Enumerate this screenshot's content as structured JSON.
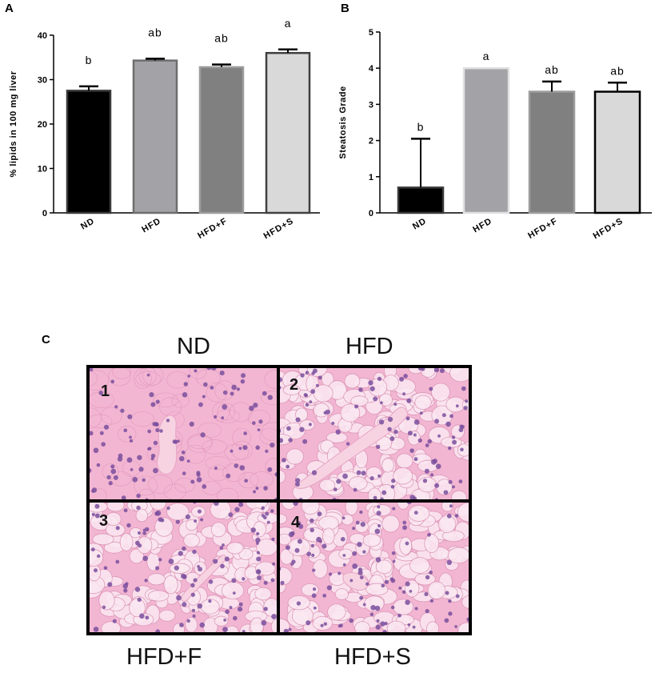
{
  "panels": {
    "a_label": "A",
    "b_label": "B",
    "c_label": "C"
  },
  "chart_data": [
    {
      "type": "bar",
      "panel": "A",
      "categories": [
        "ND",
        "HFD",
        "HFD+F",
        "HFD+S"
      ],
      "values": [
        27.5,
        34.3,
        32.8,
        36.0
      ],
      "errors": [
        1.0,
        0.4,
        0.6,
        0.8
      ],
      "letters": [
        "b",
        "ab",
        "ab",
        "a"
      ],
      "colors": [
        "#000000",
        "#a3a3a7",
        "#808080",
        "#d9d9d9"
      ],
      "edge_colors": [
        "#3a3a3a",
        "#6e6e6e",
        "#9c9c9c",
        "#404040"
      ],
      "title": "",
      "xlabel": "",
      "ylabel": "% lipids in 100 mg liver",
      "ylim": [
        0,
        40
      ],
      "yticks": [
        "0",
        "10",
        "20",
        "30",
        "40"
      ]
    },
    {
      "type": "bar",
      "panel": "B",
      "categories": [
        "ND",
        "HFD",
        "HFD+F",
        "HFD+S"
      ],
      "values": [
        0.7,
        4.0,
        3.35,
        3.35
      ],
      "errors": [
        1.35,
        0.0,
        0.28,
        0.25
      ],
      "letters": [
        "b",
        "a",
        "ab",
        "ab"
      ],
      "colors": [
        "#000000",
        "#a3a3a7",
        "#808080",
        "#d9d9d9"
      ],
      "edge_colors": [
        "#3a3a3a",
        "#e0e0e0",
        "#9c9c9c",
        "#000000"
      ],
      "title": "",
      "xlabel": "",
      "ylabel": "Steatosis Grade",
      "ylim": [
        0,
        5
      ],
      "yticks": [
        "0",
        "1",
        "2",
        "3",
        "4",
        "5"
      ]
    }
  ],
  "micrographs": {
    "top_labels": [
      "ND",
      "HFD"
    ],
    "bottom_labels": [
      "HFD+F",
      "HFD+S"
    ],
    "numbers": [
      "1",
      "2",
      "3",
      "4"
    ],
    "colors": {
      "background": "#f2b6d2",
      "nucleus": "#7a4f9e",
      "vessel": "#f7d3e2",
      "vacuole": "#fbe8f1"
    }
  }
}
